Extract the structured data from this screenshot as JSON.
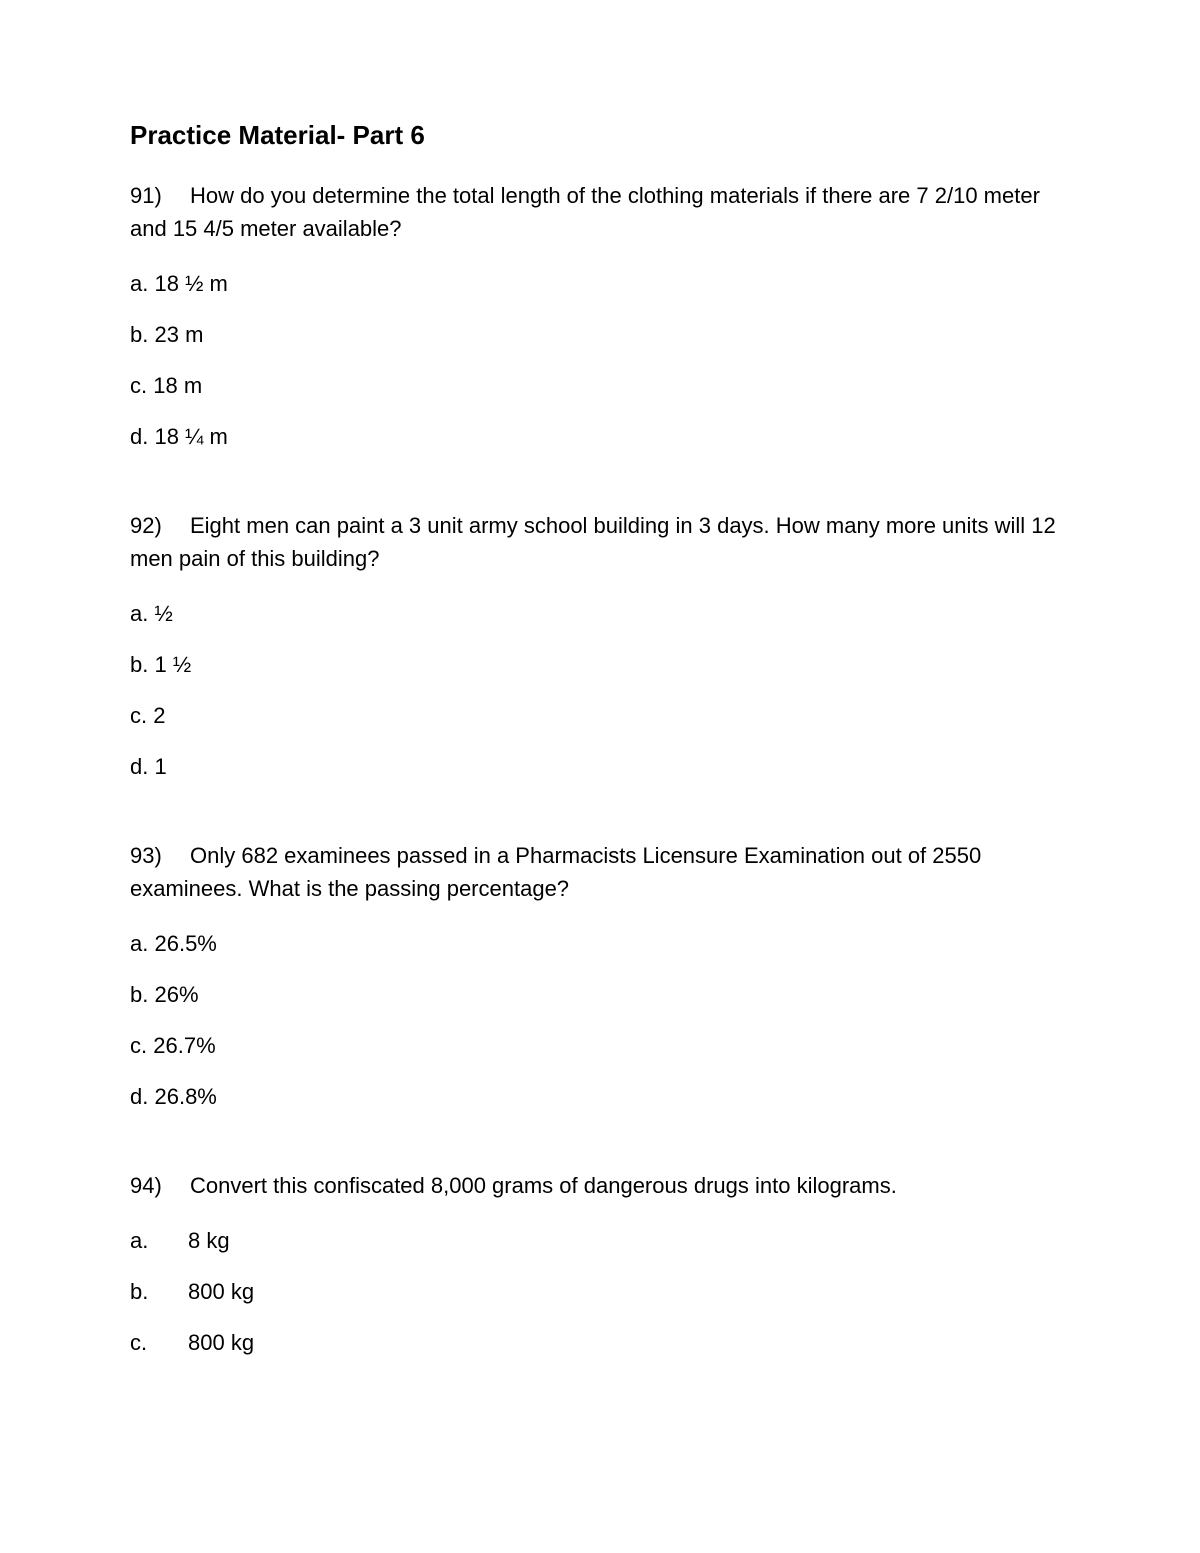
{
  "title": "Practice Material- Part 6",
  "background_color": "#ffffff",
  "text_color": "#000000",
  "font_family": "Arial",
  "title_fontsize": 26,
  "body_fontsize": 22,
  "questions": [
    {
      "number": "91)",
      "text": "How do you determine the total length of the clothing materials if there are 7 2/10 meter and 15 4/5 meter available?",
      "options": [
        {
          "letter": "a.",
          "text": "18 ½ m"
        },
        {
          "letter": "b.",
          "text": "23 m"
        },
        {
          "letter": "c.",
          "text": "18 m"
        },
        {
          "letter": "d.",
          "text": "18 ¼ m"
        }
      ],
      "narrow_letter": true
    },
    {
      "number": "92)",
      "text": "Eight men can paint a 3 unit army school building in 3 days. How many more units will 12 men pain of this building?",
      "options": [
        {
          "letter": "a.",
          "text": "½"
        },
        {
          "letter": "b.",
          "text": "1 ½"
        },
        {
          "letter": "c.",
          "text": "2"
        },
        {
          "letter": "d.",
          "text": "1"
        }
      ],
      "narrow_letter": true
    },
    {
      "number": "93)",
      "text": "Only 682 examinees passed in a Pharmacists Licensure Examination out of 2550 examinees. What is the passing percentage?",
      "options": [
        {
          "letter": "a.",
          "text": "26.5%"
        },
        {
          "letter": "b.",
          "text": "26%"
        },
        {
          "letter": "c.",
          "text": "26.7%"
        },
        {
          "letter": "d.",
          "text": "26.8%"
        }
      ],
      "narrow_letter": true
    },
    {
      "number": "94)",
      "text": "Convert this confiscated 8,000 grams of dangerous drugs into kilograms.",
      "options": [
        {
          "letter": "a.",
          "text": "8 kg"
        },
        {
          "letter": "b.",
          "text": "800 kg"
        },
        {
          "letter": "c.",
          "text": "800 kg"
        }
      ],
      "narrow_letter": false
    }
  ]
}
